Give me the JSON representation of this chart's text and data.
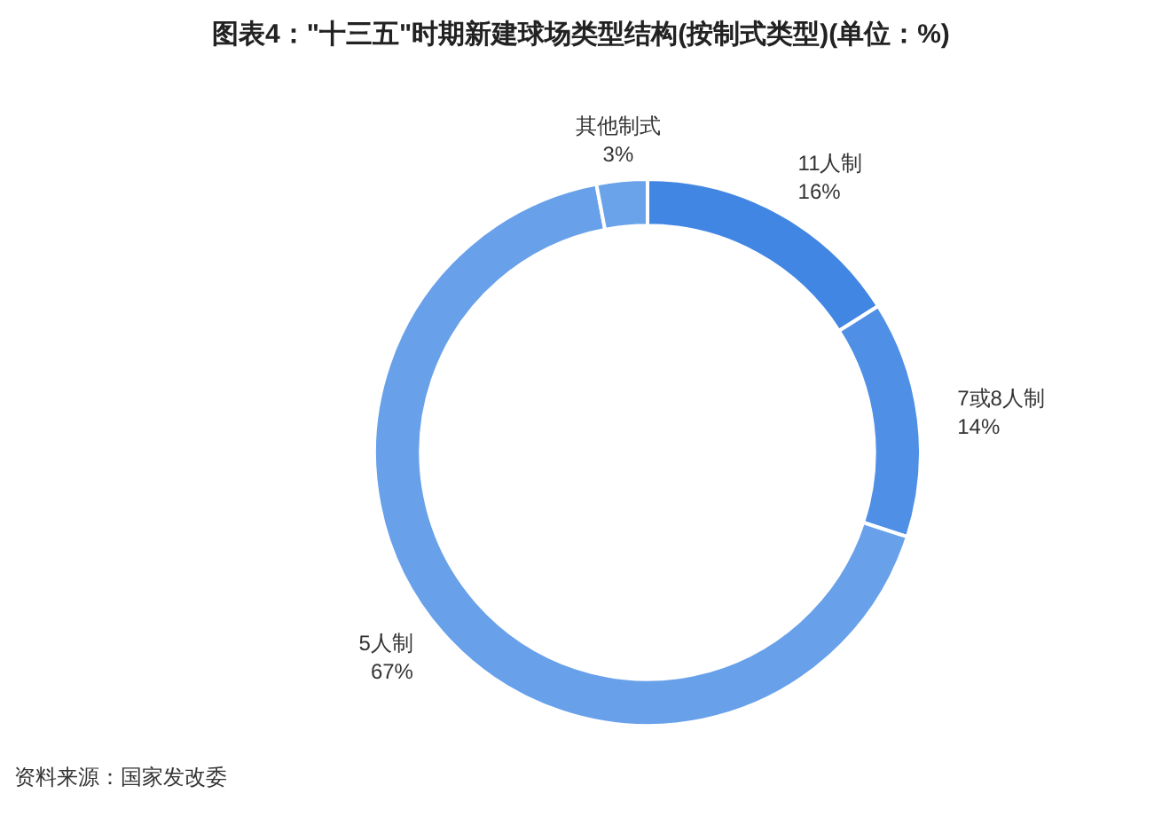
{
  "chart_data": {
    "type": "donut",
    "title": "图表4：\"十三五\"时期新建球场类型结构(按制式类型)(单位：%)",
    "categories": [
      "11人制",
      "7或8人制",
      "5人制",
      "其他制式"
    ],
    "values": [
      16,
      14,
      67,
      3
    ],
    "colors": [
      "#4286e3",
      "#4f90e6",
      "#68a1ea",
      "#6aa3ea"
    ],
    "value_labels": [
      "16%",
      "14%",
      "67%",
      "3%"
    ],
    "legend": false,
    "annotations": [
      "资料来源：国家发改委"
    ]
  }
}
